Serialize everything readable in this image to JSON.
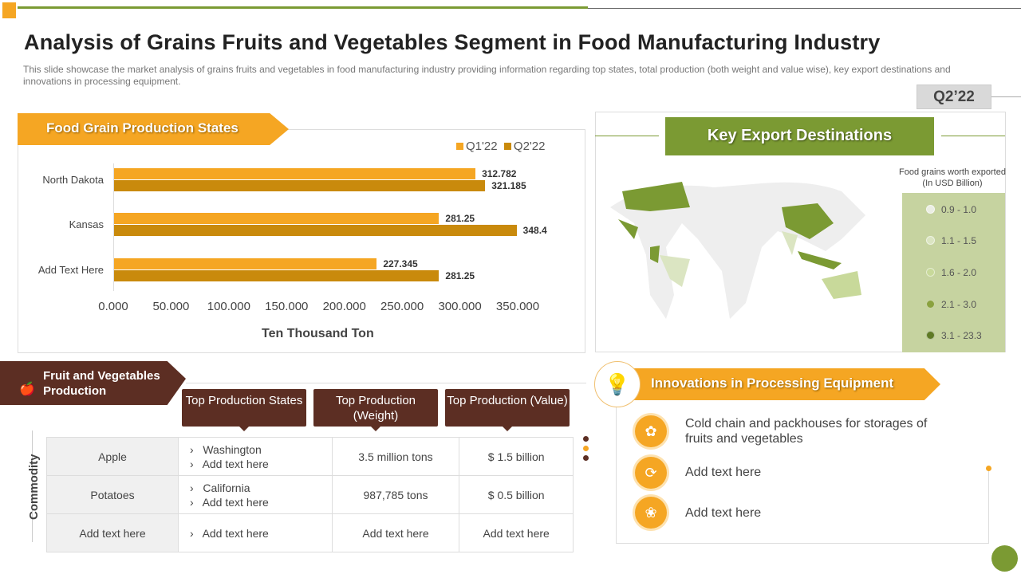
{
  "header": {
    "title": "Analysis of Grains Fruits and Vegetables Segment in Food Manufacturing Industry",
    "subtitle": "This slide showcase the market analysis of grains fruits and vegetables  in food manufacturing industry providing information  regarding top states, total production (both weight and value wise), key export destinations and innovations  in processing equipment."
  },
  "colors": {
    "orange": "#f5a623",
    "dark_orange": "#c98a0c",
    "green": "#7b9a33",
    "brown": "#5c2e23"
  },
  "grain": {
    "heading": "Food Grain Production States"
  },
  "chart_data": {
    "type": "bar",
    "orientation": "horizontal",
    "categories": [
      "North Dakota",
      "Kansas",
      "Add Text Here"
    ],
    "series": [
      {
        "name": "Q1'22",
        "values": [
          312.782,
          281.25,
          227.345
        ],
        "color": "#f5a623"
      },
      {
        "name": "Q2'22",
        "values": [
          321.185,
          348.4,
          281.25
        ],
        "color": "#c98a0c"
      }
    ],
    "value_labels": [
      [
        "312.782",
        "281.25",
        "227.345"
      ],
      [
        "321.185",
        "348.4",
        "281.25"
      ]
    ],
    "xlabel": "Ten Thousand Ton",
    "xlim": [
      0,
      350
    ],
    "ticks": [
      "0.000",
      "50.000",
      "100.000",
      "150.000",
      "200.000",
      "250.000",
      "300.000",
      "350.000"
    ],
    "legend": "top-right",
    "grid": false
  },
  "export": {
    "quarter": "Q2’22",
    "heading": "Key Export Destinations",
    "legend_title": "Food grains worth exported (In USD Billion)",
    "legend": [
      {
        "label": "0.9 - 1.0",
        "color": "#ebeee4"
      },
      {
        "label": "1.1 - 1.5",
        "color": "#dbe5c2"
      },
      {
        "label": "1.6 - 2.0",
        "color": "#c8d99a"
      },
      {
        "label": "2.1 - 3.0",
        "color": "#8aa23f"
      },
      {
        "label": "3.1 - 23.3",
        "color": "#5f7a25"
      }
    ]
  },
  "fruitveg": {
    "heading_line1": "Fruit and Vegetables",
    "heading_line2": "Production",
    "row_axis": "Commodity",
    "columns": [
      "Top Production States",
      "Top Production (Weight)",
      "Top Production (Value)"
    ],
    "rows": [
      {
        "commodity": "Apple",
        "states": [
          "Washington",
          "Add text here"
        ],
        "weight": "3.5 million tons",
        "value": "$ 1.5 billion"
      },
      {
        "commodity": "Potatoes",
        "states": [
          "California",
          "Add text here"
        ],
        "weight": "987,785 tons",
        "value": "$ 0.5 billion"
      },
      {
        "commodity": "Add text here",
        "states": [
          "Add text here"
        ],
        "weight": "Add text here",
        "value": "Add text here"
      }
    ]
  },
  "innovations": {
    "heading": "Innovations in Processing Equipment",
    "items": [
      {
        "text": "Cold chain and packhouses for storages of fruits and vegetables",
        "icon": "fruit-basket-icon"
      },
      {
        "text": "Add text here",
        "icon": "cycle-gear-icon"
      },
      {
        "text": "Add text here",
        "icon": "produce-icon"
      }
    ]
  }
}
